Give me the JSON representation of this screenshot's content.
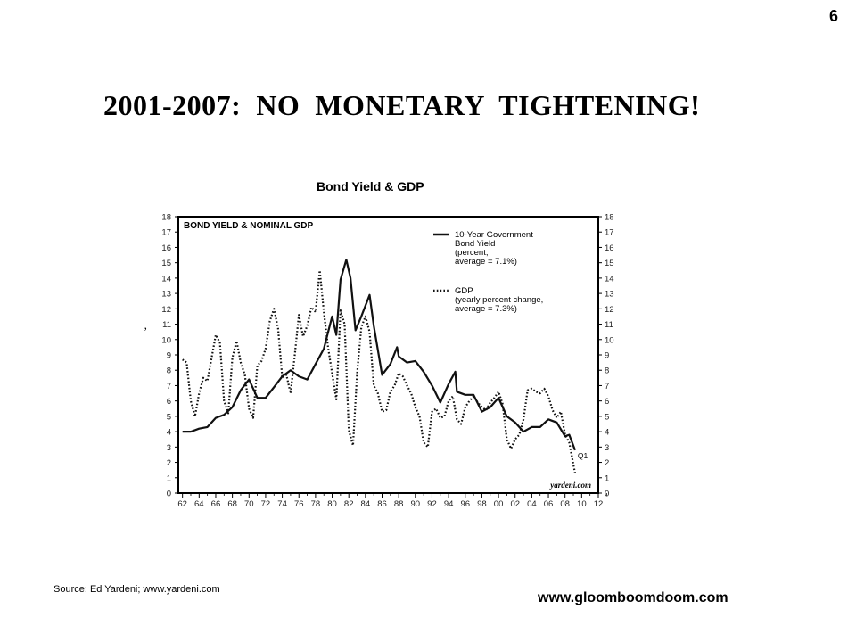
{
  "slide": {
    "number": "6",
    "title": "2001-2007:  NO  MONETARY  TIGHTENING!",
    "chart_caption": "Bond Yield & GDP",
    "source": "Source: Ed Yardeni; www.yardeni.com",
    "website": "www.gloomboomdoom.com"
  },
  "chart_data": {
    "type": "line",
    "title": "BOND YIELD & NOMINAL GDP",
    "xlabel": "",
    "ylabel": "",
    "xlim": [
      1961.5,
      2012
    ],
    "ylim": [
      0,
      18
    ],
    "x_ticks": [
      62,
      64,
      66,
      68,
      70,
      72,
      74,
      76,
      78,
      80,
      82,
      84,
      86,
      88,
      90,
      92,
      94,
      96,
      98,
      0,
      2,
      4,
      6,
      8,
      10,
      12
    ],
    "x_tick_labels": [
      "62",
      "64",
      "66",
      "68",
      "70",
      "72",
      "74",
      "76",
      "78",
      "80",
      "82",
      "84",
      "86",
      "88",
      "90",
      "92",
      "94",
      "96",
      "98",
      "00",
      "02",
      "04",
      "06",
      "08",
      "10",
      "12"
    ],
    "y_ticks": [
      0,
      1,
      2,
      3,
      4,
      5,
      6,
      7,
      8,
      9,
      10,
      11,
      12,
      13,
      14,
      15,
      16,
      17,
      18
    ],
    "y_tick_labels": [
      "0",
      "1",
      "2",
      "3",
      "4",
      "5",
      "6",
      "7",
      "8",
      "9",
      "10",
      "11",
      "12",
      "13",
      "14",
      "15",
      "16",
      "17",
      "18"
    ],
    "grid": false,
    "legend_position": "top-right",
    "watermark": "yardeni.com",
    "end_label": "Q1",
    "series": [
      {
        "name": "10-Year Government Bond Yield (percent, average = 7.1%)",
        "legend_lines": [
          "10-Year Government",
          "Bond Yield",
          "(percent,",
          "average = 7.1%)"
        ],
        "style": "solid",
        "color": "#111111",
        "points": [
          [
            1962,
            4.0
          ],
          [
            1963,
            4.0
          ],
          [
            1964,
            4.2
          ],
          [
            1965,
            4.3
          ],
          [
            1966,
            4.9
          ],
          [
            1967,
            5.1
          ],
          [
            1968,
            5.6
          ],
          [
            1969,
            6.7
          ],
          [
            1970,
            7.4
          ],
          [
            1971,
            6.2
          ],
          [
            1972,
            6.2
          ],
          [
            1973,
            6.9
          ],
          [
            1974,
            7.6
          ],
          [
            1975,
            8.0
          ],
          [
            1976,
            7.6
          ],
          [
            1977,
            7.4
          ],
          [
            1978,
            8.4
          ],
          [
            1979,
            9.4
          ],
          [
            1980,
            11.5
          ],
          [
            1980.5,
            10.3
          ],
          [
            1981,
            13.9
          ],
          [
            1981.7,
            15.2
          ],
          [
            1982.2,
            14.0
          ],
          [
            1982.8,
            10.6
          ],
          [
            1983.5,
            11.5
          ],
          [
            1984.5,
            12.9
          ],
          [
            1985,
            10.9
          ],
          [
            1986,
            7.7
          ],
          [
            1987,
            8.4
          ],
          [
            1987.8,
            9.5
          ],
          [
            1988,
            8.9
          ],
          [
            1989,
            8.5
          ],
          [
            1990,
            8.6
          ],
          [
            1991,
            7.9
          ],
          [
            1992,
            7.0
          ],
          [
            1993,
            5.9
          ],
          [
            1994,
            7.1
          ],
          [
            1994.8,
            7.9
          ],
          [
            1995,
            6.6
          ],
          [
            1996,
            6.4
          ],
          [
            1997,
            6.4
          ],
          [
            1998,
            5.3
          ],
          [
            1999,
            5.6
          ],
          [
            2000,
            6.2
          ],
          [
            2001,
            5.0
          ],
          [
            2002,
            4.6
          ],
          [
            2003,
            4.0
          ],
          [
            2004,
            4.3
          ],
          [
            2005,
            4.3
          ],
          [
            2006,
            4.8
          ],
          [
            2007,
            4.6
          ],
          [
            2008,
            3.7
          ],
          [
            2008.5,
            3.8
          ],
          [
            2009.2,
            2.8
          ]
        ]
      },
      {
        "name": "GDP (yearly percent change, average = 7.3%)",
        "legend_lines": [
          "GDP",
          "(yearly percent change,",
          "average = 7.3%)"
        ],
        "style": "dotted",
        "color": "#111111",
        "points": [
          [
            1962,
            8.7
          ],
          [
            1962.5,
            8.5
          ],
          [
            1963,
            6.0
          ],
          [
            1963.5,
            5.0
          ],
          [
            1964,
            6.5
          ],
          [
            1964.5,
            7.5
          ],
          [
            1965,
            7.3
          ],
          [
            1965.5,
            8.8
          ],
          [
            1966,
            10.3
          ],
          [
            1966.5,
            9.8
          ],
          [
            1967,
            6.0
          ],
          [
            1967.5,
            5.2
          ],
          [
            1968,
            8.8
          ],
          [
            1968.5,
            9.9
          ],
          [
            1969,
            8.5
          ],
          [
            1969.5,
            7.7
          ],
          [
            1970,
            5.5
          ],
          [
            1970.5,
            4.9
          ],
          [
            1971,
            8.3
          ],
          [
            1971.5,
            8.6
          ],
          [
            1972,
            9.4
          ],
          [
            1972.5,
            11.2
          ],
          [
            1973,
            12.0
          ],
          [
            1973.5,
            10.7
          ],
          [
            1974,
            7.5
          ],
          [
            1974.5,
            7.7
          ],
          [
            1975,
            6.5
          ],
          [
            1975.5,
            9.0
          ],
          [
            1976,
            11.6
          ],
          [
            1976.5,
            10.2
          ],
          [
            1977,
            10.9
          ],
          [
            1977.5,
            12.1
          ],
          [
            1978,
            11.8
          ],
          [
            1978.5,
            14.5
          ],
          [
            1979,
            11.8
          ],
          [
            1979.5,
            9.5
          ],
          [
            1980,
            7.8
          ],
          [
            1980.5,
            6.1
          ],
          [
            1981,
            11.9
          ],
          [
            1981.5,
            11.0
          ],
          [
            1982,
            4.1
          ],
          [
            1982.5,
            3.1
          ],
          [
            1983,
            7.8
          ],
          [
            1983.5,
            10.8
          ],
          [
            1984,
            11.5
          ],
          [
            1984.5,
            10.5
          ],
          [
            1985,
            7.0
          ],
          [
            1985.5,
            6.5
          ],
          [
            1986,
            5.3
          ],
          [
            1986.5,
            5.4
          ],
          [
            1987,
            6.6
          ],
          [
            1987.5,
            7.0
          ],
          [
            1988,
            7.8
          ],
          [
            1988.5,
            7.6
          ],
          [
            1989,
            7.0
          ],
          [
            1989.5,
            6.5
          ],
          [
            1990,
            5.6
          ],
          [
            1990.5,
            5.0
          ],
          [
            1991,
            3.3
          ],
          [
            1991.5,
            3.0
          ],
          [
            1992,
            5.3
          ],
          [
            1992.5,
            5.5
          ],
          [
            1993,
            4.9
          ],
          [
            1993.5,
            5.0
          ],
          [
            1994,
            6.0
          ],
          [
            1994.5,
            6.3
          ],
          [
            1995,
            4.8
          ],
          [
            1995.5,
            4.5
          ],
          [
            1996,
            5.6
          ],
          [
            1996.5,
            6.0
          ],
          [
            1997,
            6.3
          ],
          [
            1997.5,
            5.9
          ],
          [
            1998,
            5.6
          ],
          [
            1998.5,
            5.4
          ],
          [
            1999,
            5.9
          ],
          [
            1999.5,
            6.2
          ],
          [
            2000,
            6.6
          ],
          [
            2000.5,
            5.8
          ],
          [
            2001,
            3.5
          ],
          [
            2001.5,
            2.9
          ],
          [
            2002,
            3.5
          ],
          [
            2002.5,
            3.8
          ],
          [
            2003,
            4.8
          ],
          [
            2003.5,
            6.7
          ],
          [
            2004,
            6.8
          ],
          [
            2004.5,
            6.6
          ],
          [
            2005,
            6.5
          ],
          [
            2005.5,
            6.8
          ],
          [
            2006,
            6.3
          ],
          [
            2006.5,
            5.4
          ],
          [
            2007,
            4.9
          ],
          [
            2007.5,
            5.3
          ],
          [
            2008,
            3.8
          ],
          [
            2008.5,
            3.3
          ],
          [
            2009.2,
            1.3
          ]
        ]
      }
    ]
  }
}
